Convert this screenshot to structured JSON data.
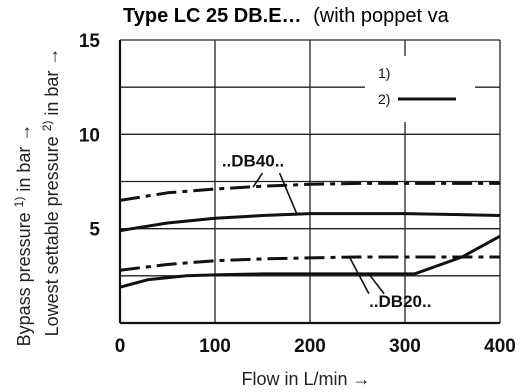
{
  "chart_data": {
    "type": "line",
    "title_main": "Type LC 25 DB.E…",
    "title_suffix": "(with poppet va",
    "xlabel": "Flow in L/min →",
    "ylabel_1": "Bypass pressure",
    "ylabel_1_sup": "1)",
    "ylabel_1_tail": "in bar →",
    "ylabel_2": "Lowest settable pressure",
    "ylabel_2_sup": "2)",
    "ylabel_2_tail": "in bar →",
    "xlim": [
      0,
      400
    ],
    "ylim": [
      0,
      15
    ],
    "x_ticks": [
      0,
      100,
      200,
      300,
      400
    ],
    "y_ticks": [
      5,
      10,
      15
    ],
    "x_tick_labels": [
      "0",
      "100",
      "200",
      "300",
      "400"
    ],
    "y_tick_labels": [
      "5",
      "10",
      "15"
    ],
    "grid": true,
    "legend": {
      "position": "top-right",
      "entries": [
        {
          "label": "1)",
          "style": "dash-dot"
        },
        {
          "label": "2)",
          "style": "solid"
        }
      ]
    },
    "series": [
      {
        "style": "dash-dot",
        "group": "DB40",
        "x": [
          0,
          50,
          100,
          150,
          200,
          250,
          300,
          350,
          400
        ],
        "y": [
          6.5,
          6.9,
          7.1,
          7.25,
          7.35,
          7.4,
          7.4,
          7.4,
          7.4
        ]
      },
      {
        "style": "solid",
        "group": "DB40",
        "x": [
          0,
          50,
          100,
          150,
          200,
          250,
          300,
          350,
          400
        ],
        "y": [
          4.9,
          5.3,
          5.55,
          5.7,
          5.8,
          5.8,
          5.8,
          5.75,
          5.7
        ]
      },
      {
        "style": "dash-dot",
        "group": "DB20",
        "x": [
          0,
          50,
          100,
          150,
          200,
          250,
          300,
          350,
          400
        ],
        "y": [
          2.8,
          3.1,
          3.3,
          3.4,
          3.45,
          3.5,
          3.5,
          3.5,
          3.5
        ]
      },
      {
        "style": "solid",
        "group": "DB20",
        "x": [
          0,
          30,
          70,
          100,
          150,
          200,
          250,
          300,
          310,
          360,
          400
        ],
        "y": [
          1.9,
          2.3,
          2.5,
          2.55,
          2.6,
          2.6,
          2.6,
          2.6,
          2.6,
          3.5,
          4.6
        ]
      }
    ],
    "annotations": [
      {
        "text": "..DB40..",
        "x": 140,
        "y": 8.3
      },
      {
        "text": "..DB20..",
        "x": 295,
        "y": 0.85
      }
    ]
  }
}
